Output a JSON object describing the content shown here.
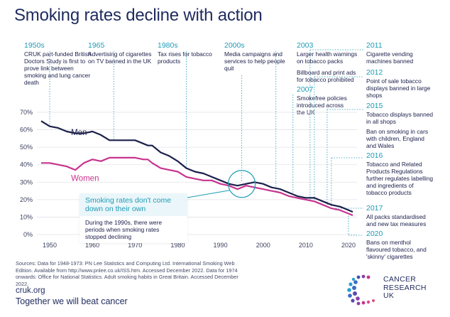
{
  "title": "Smoking rates decline with action",
  "annotations": [
    {
      "id": "a1950s",
      "year": "1950s",
      "text": "CRUK part-funded British Doctors Study is first to prove link between smoking and lung cancer death"
    },
    {
      "id": "a1965",
      "year": "1965",
      "text": "Advertising of cigarettes on TV banned in the UK"
    },
    {
      "id": "a1980s",
      "year": "1980s",
      "text": "Tax rises for tobacco products"
    },
    {
      "id": "a2000s",
      "year": "2000s",
      "text": "Media campaigns and services to help people quit"
    },
    {
      "id": "a2003",
      "year": "2003",
      "text": "Larger health warnings on tobacco packs"
    },
    {
      "id": "a2003b",
      "year": "",
      "text": "Billboard and print ads for tobacco prohibited"
    },
    {
      "id": "a2007",
      "year": "2007",
      "text": "Smokefree policies introduced across the UK"
    },
    {
      "id": "a2011",
      "year": "2011",
      "text": "Cigarette vending machines banned"
    },
    {
      "id": "a2012",
      "year": "2012",
      "text": "Point of sale tobacco displays banned in large shops"
    },
    {
      "id": "a2015",
      "year": "2015",
      "text": "Tobacco displays banned in all shops"
    },
    {
      "id": "a2015b",
      "year": "",
      "text": "Ban on smoking in cars with children, England and Wales"
    },
    {
      "id": "a2016",
      "year": "2016",
      "text": "Tobacco and Related Products Regulations further regulates labelling and ingredients of tobacco products"
    },
    {
      "id": "a2017",
      "year": "2017",
      "text": "All packs standardised and new tax measures"
    },
    {
      "id": "a2020",
      "year": "2020",
      "text": "Bans on menthol flavoured tobacco, and 'skinny' cigarettes"
    }
  ],
  "callout": {
    "heading": "Smoking rates don't come down on their own",
    "body": "During the 1990s, there were periods when smoking rates stopped declining"
  },
  "sources": "Sources: Data for 1948-1973: PN Lee Statistics and Computing Ltd. International Smoking Web Edition. Available from http://www.pnlee.co.uk/ISS.htm. Accessed December 2022. Data for 1974 onwards: Office for National Statistics. Adult smoking habits in Great Britain. Accessed December 2022.",
  "footer": {
    "url": "cruk.org",
    "tagline": "Together we will beat cancer"
  },
  "logo": {
    "line1": "CANCER",
    "line2": "RESEARCH",
    "line3": "UK"
  },
  "colors": {
    "men": "#1b1f4a",
    "women": "#c7348e",
    "accent": "#1f9bb5",
    "grid": "#e3e3e8"
  },
  "chart_data": {
    "type": "line",
    "title": "Smoking rates decline with action",
    "xlabel": "",
    "ylabel": "",
    "xlim": [
      1947,
      2022
    ],
    "ylim": [
      0,
      70
    ],
    "xticks": [
      1950,
      1960,
      1970,
      1980,
      1990,
      2000,
      2010,
      2020
    ],
    "yticks": [
      0,
      10,
      20,
      30,
      40,
      50,
      60,
      70
    ],
    "ytick_labels": [
      "0%",
      "10%",
      "20%",
      "30%",
      "40%",
      "50%",
      "60%",
      "70%"
    ],
    "grid": true,
    "series": [
      {
        "name": "Men",
        "color": "#1b1f4a",
        "x": [
          1948,
          1950,
          1952,
          1954,
          1956,
          1958,
          1960,
          1962,
          1964,
          1966,
          1968,
          1970,
          1972,
          1973,
          1974,
          1976,
          1978,
          1980,
          1982,
          1984,
          1986,
          1988,
          1990,
          1992,
          1994,
          1996,
          1998,
          2000,
          2002,
          2004,
          2006,
          2008,
          2010,
          2012,
          2014,
          2016,
          2018,
          2019,
          2020,
          2021
        ],
        "y": [
          65,
          62,
          61,
          59,
          58,
          58,
          59,
          57,
          54,
          54,
          54,
          54,
          52,
          51,
          51,
          47,
          45,
          42,
          38,
          36,
          35,
          33,
          31,
          29,
          28,
          29,
          30,
          29,
          27,
          26,
          24,
          22,
          21,
          21,
          19,
          17,
          16,
          15,
          14,
          13
        ]
      },
      {
        "name": "Women",
        "color": "#c7348e",
        "x": [
          1948,
          1950,
          1952,
          1954,
          1956,
          1958,
          1960,
          1962,
          1964,
          1966,
          1968,
          1970,
          1972,
          1973,
          1974,
          1976,
          1978,
          1980,
          1982,
          1984,
          1986,
          1988,
          1990,
          1992,
          1994,
          1996,
          1998,
          2000,
          2002,
          2004,
          2006,
          2008,
          2010,
          2012,
          2014,
          2016,
          2018,
          2019,
          2020,
          2021
        ],
        "y": [
          41,
          41,
          40,
          39,
          37,
          41,
          43,
          42,
          44,
          44,
          44,
          44,
          43,
          43,
          41,
          38,
          37,
          36,
          33,
          32,
          31,
          31,
          29,
          28,
          26,
          28,
          27,
          26,
          25,
          24,
          22,
          21,
          20,
          19,
          17,
          15,
          14,
          13,
          12,
          11
        ]
      }
    ],
    "highlight": {
      "x": 1995,
      "y": 29
    }
  }
}
